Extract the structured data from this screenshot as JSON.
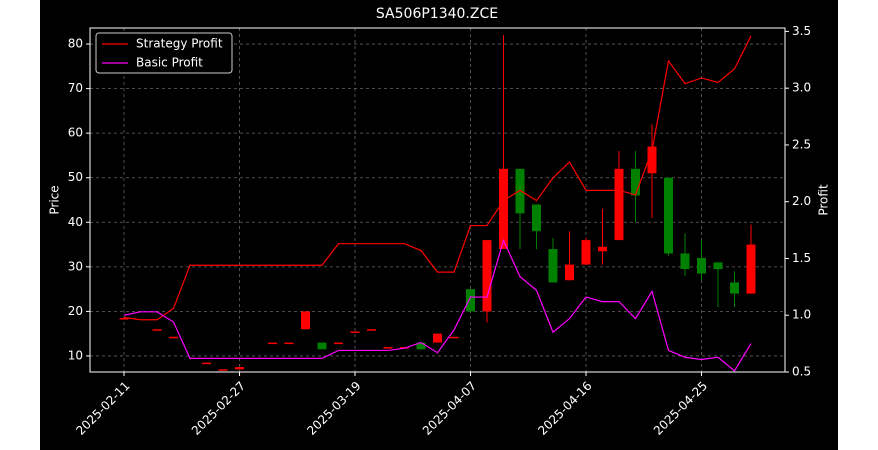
{
  "chart_data": {
    "type": "candlestick",
    "title": "SA506P1340.ZCE",
    "ylabel": "Price",
    "y2label": "Profit",
    "categories": [
      "2025-02-11",
      null,
      null,
      null,
      null,
      null,
      null,
      "2025-02-27",
      null,
      null,
      null,
      null,
      null,
      null,
      "2025-03-19",
      null,
      null,
      null,
      null,
      null,
      null,
      "2025-04-07",
      null,
      null,
      null,
      null,
      null,
      null,
      "2025-04-16",
      null,
      null,
      null,
      null,
      null,
      null,
      "2025-04-25",
      null,
      null,
      null
    ],
    "open": [
      18.5,
      null,
      16,
      14,
      null,
      8.5,
      7,
      7,
      null,
      13,
      13,
      16,
      13,
      13,
      15.5,
      16,
      12,
      12,
      13,
      13,
      14.3,
      25,
      20,
      34,
      52,
      44,
      34,
      27,
      30.5,
      33.5,
      36,
      52,
      51,
      50,
      33,
      32,
      31,
      26.5,
      24
    ],
    "high": [
      18.5,
      null,
      16,
      14.3,
      null,
      8.5,
      7,
      7.5,
      null,
      13,
      13,
      20,
      13,
      13,
      15.5,
      16,
      12,
      12,
      13,
      15,
      14.3,
      25,
      36,
      82,
      52,
      44,
      36.5,
      38,
      36.5,
      43,
      56,
      56,
      62,
      50,
      37.5,
      36,
      31,
      29,
      39.5
    ],
    "low": [
      18.5,
      null,
      16,
      14,
      null,
      8.5,
      7,
      7,
      null,
      13,
      13,
      16,
      11.5,
      13,
      15.5,
      16,
      12,
      12,
      11.5,
      13,
      14.3,
      20,
      17.5,
      34,
      34,
      34,
      26.5,
      27,
      30.5,
      30.5,
      36,
      40,
      41,
      32.5,
      28,
      27,
      21,
      21,
      24
    ],
    "close": [
      18.5,
      null,
      16,
      14.3,
      null,
      8.5,
      7,
      7.5,
      null,
      13,
      13,
      20,
      11.5,
      13,
      15.5,
      16,
      12,
      12,
      11.5,
      15,
      14.3,
      20,
      36,
      52,
      42,
      38,
      26.5,
      30.5,
      36,
      34.5,
      52,
      46,
      57,
      33,
      29.5,
      28.5,
      29.5,
      24,
      35
    ],
    "up_color": "#ff0000",
    "down_color": "#008000",
    "series": [
      {
        "name": "Strategy Profit",
        "color": "#ff0000",
        "axis": "y2",
        "values": [
          0.98,
          0.96,
          0.96,
          1.06,
          1.44,
          1.44,
          1.44,
          1.44,
          1.44,
          1.44,
          1.44,
          1.44,
          1.44,
          1.63,
          1.63,
          1.63,
          1.63,
          1.63,
          1.57,
          1.38,
          1.38,
          1.79,
          1.79,
          2.01,
          2.1,
          2.01,
          2.21,
          2.35,
          2.1,
          2.1,
          2.1,
          2.06,
          2.45,
          3.24,
          3.04,
          3.09,
          3.05,
          3.17,
          3.46
        ]
      },
      {
        "name": "Basic Profit",
        "color": "#ff00ff",
        "axis": "y2",
        "values": [
          1.0,
          1.03,
          1.03,
          0.94,
          0.62,
          0.62,
          0.62,
          0.62,
          0.62,
          0.62,
          0.62,
          0.62,
          0.62,
          0.69,
          0.69,
          0.69,
          0.69,
          0.71,
          0.76,
          0.67,
          0.87,
          1.16,
          1.16,
          1.66,
          1.34,
          1.22,
          0.85,
          0.97,
          1.16,
          1.12,
          1.12,
          0.97,
          1.21,
          0.69,
          0.63,
          0.61,
          0.63,
          0.51,
          0.75
        ]
      }
    ],
    "ylim": [
      6.4,
      83.6
    ],
    "yticks": [
      10,
      20,
      30,
      40,
      50,
      60,
      70,
      80
    ],
    "y2lim": [
      0.5,
      3.53
    ],
    "y2ticks": [
      0.5,
      {
        "value": 1,
        "label": "1.0"
      },
      1.5,
      {
        "value": 2,
        "label": "2.0"
      },
      2.5,
      {
        "value": 3,
        "label": "3.0"
      },
      3.5
    ],
    "grid": true,
    "legend": "upper left"
  }
}
